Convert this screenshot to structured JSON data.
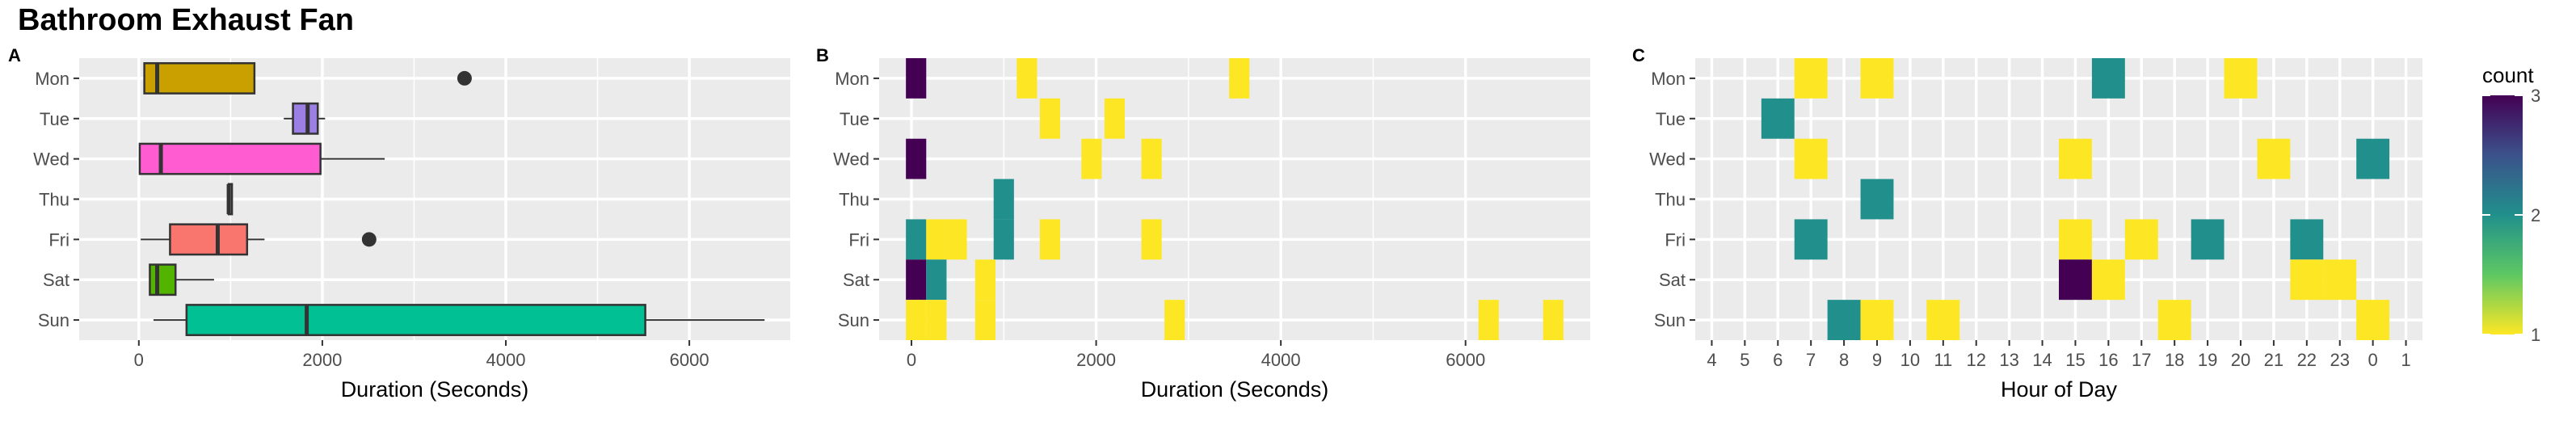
{
  "title": "Bathroom Exhaust Fan",
  "colors": {
    "panel_bg": "#EBEBEB",
    "grid": "#FFFFFF",
    "tile_1": "#FDE725",
    "tile_2": "#21908C",
    "tile_3": "#440154",
    "outlier": "#333333"
  },
  "chart_data": [
    {
      "panel": "A",
      "type": "box",
      "xlabel": "Duration (Seconds)",
      "ylabel": "",
      "xlim": [
        -650,
        7100
      ],
      "xticks": [
        0,
        2000,
        4000,
        6000
      ],
      "categories": [
        "Mon",
        "Tue",
        "Wed",
        "Thu",
        "Fri",
        "Sat",
        "Sun"
      ],
      "boxes": [
        {
          "day": "Mon",
          "fill": "#C9A000",
          "whisker_low": 60,
          "q1": 60,
          "median": 200,
          "q3": 1260,
          "whisker_high": 1260,
          "outliers": [
            3550
          ]
        },
        {
          "day": "Tue",
          "fill": "#9B7FE3",
          "whisker_low": 1580,
          "q1": 1680,
          "median": 1840,
          "q3": 1950,
          "whisker_high": 2030,
          "outliers": []
        },
        {
          "day": "Wed",
          "fill": "#FF5CD1",
          "whisker_low": 10,
          "q1": 10,
          "median": 240,
          "q3": 1980,
          "whisker_high": 2680,
          "outliers": []
        },
        {
          "day": "Thu",
          "fill": "#B0B0B0",
          "whisker_low": 980,
          "q1": 980,
          "median": 980,
          "q3": 980,
          "whisker_high": 1000,
          "outliers": []
        },
        {
          "day": "Fri",
          "fill": "#F8766D",
          "whisker_low": 20,
          "q1": 340,
          "median": 860,
          "q3": 1180,
          "whisker_high": 1370,
          "outliers": [
            2510
          ]
        },
        {
          "day": "Sat",
          "fill": "#53B400",
          "whisker_low": 120,
          "q1": 120,
          "median": 200,
          "q3": 400,
          "whisker_high": 820,
          "outliers": []
        },
        {
          "day": "Sun",
          "fill": "#00C094",
          "whisker_low": 160,
          "q1": 520,
          "median": 1830,
          "q3": 5520,
          "whisker_high": 6820,
          "outliers": []
        }
      ]
    },
    {
      "panel": "B",
      "type": "heatmap",
      "xlabel": "Duration (Seconds)",
      "ylabel": "",
      "xlim": [
        -350,
        7350
      ],
      "xticks": [
        0,
        2000,
        4000,
        6000
      ],
      "bin_width": 220,
      "categories": [
        "Mon",
        "Tue",
        "Wed",
        "Thu",
        "Fri",
        "Sat",
        "Sun"
      ],
      "tiles": [
        {
          "day": "Mon",
          "x": 50,
          "count": 3
        },
        {
          "day": "Mon",
          "x": 1250,
          "count": 1
        },
        {
          "day": "Mon",
          "x": 3550,
          "count": 1
        },
        {
          "day": "Tue",
          "x": 1500,
          "count": 1
        },
        {
          "day": "Tue",
          "x": 2200,
          "count": 1
        },
        {
          "day": "Wed",
          "x": 50,
          "count": 3
        },
        {
          "day": "Wed",
          "x": 1950,
          "count": 1
        },
        {
          "day": "Wed",
          "x": 2600,
          "count": 1
        },
        {
          "day": "Thu",
          "x": 1000,
          "count": 2
        },
        {
          "day": "Fri",
          "x": 50,
          "count": 2
        },
        {
          "day": "Fri",
          "x": 270,
          "count": 1
        },
        {
          "day": "Fri",
          "x": 490,
          "count": 1
        },
        {
          "day": "Fri",
          "x": 1000,
          "count": 2
        },
        {
          "day": "Fri",
          "x": 1500,
          "count": 1
        },
        {
          "day": "Fri",
          "x": 2600,
          "count": 1
        },
        {
          "day": "Sat",
          "x": 50,
          "count": 3
        },
        {
          "day": "Sat",
          "x": 270,
          "count": 2
        },
        {
          "day": "Sat",
          "x": 800,
          "count": 1
        },
        {
          "day": "Sun",
          "x": 50,
          "count": 1
        },
        {
          "day": "Sun",
          "x": 270,
          "count": 1
        },
        {
          "day": "Sun",
          "x": 800,
          "count": 1
        },
        {
          "day": "Sun",
          "x": 2850,
          "count": 1
        },
        {
          "day": "Sun",
          "x": 6250,
          "count": 1
        },
        {
          "day": "Sun",
          "x": 6950,
          "count": 1
        }
      ]
    },
    {
      "panel": "C",
      "type": "heatmap",
      "xlabel": "Hour of Day",
      "ylabel": "",
      "xticks": [
        "4",
        "5",
        "6",
        "7",
        "8",
        "9",
        "10",
        "11",
        "12",
        "13",
        "14",
        "15",
        "16",
        "17",
        "18",
        "19",
        "20",
        "21",
        "22",
        "23",
        "0",
        "1"
      ],
      "categories": [
        "Mon",
        "Tue",
        "Wed",
        "Thu",
        "Fri",
        "Sat",
        "Sun"
      ],
      "tiles": [
        {
          "day": "Mon",
          "hour": "7",
          "count": 1
        },
        {
          "day": "Mon",
          "hour": "9",
          "count": 1
        },
        {
          "day": "Mon",
          "hour": "16",
          "count": 2
        },
        {
          "day": "Mon",
          "hour": "20",
          "count": 1
        },
        {
          "day": "Tue",
          "hour": "6",
          "count": 2
        },
        {
          "day": "Wed",
          "hour": "7",
          "count": 1
        },
        {
          "day": "Wed",
          "hour": "15",
          "count": 1
        },
        {
          "day": "Wed",
          "hour": "21",
          "count": 1
        },
        {
          "day": "Wed",
          "hour": "0",
          "count": 2
        },
        {
          "day": "Thu",
          "hour": "9",
          "count": 2
        },
        {
          "day": "Fri",
          "hour": "7",
          "count": 2
        },
        {
          "day": "Fri",
          "hour": "15",
          "count": 1
        },
        {
          "day": "Fri",
          "hour": "17",
          "count": 1
        },
        {
          "day": "Fri",
          "hour": "19",
          "count": 2
        },
        {
          "day": "Fri",
          "hour": "22",
          "count": 2
        },
        {
          "day": "Sat",
          "hour": "15",
          "count": 3
        },
        {
          "day": "Sat",
          "hour": "16",
          "count": 1
        },
        {
          "day": "Sat",
          "hour": "22",
          "count": 1
        },
        {
          "day": "Sat",
          "hour": "23",
          "count": 1
        },
        {
          "day": "Sun",
          "hour": "8",
          "count": 2
        },
        {
          "day": "Sun",
          "hour": "9",
          "count": 1
        },
        {
          "day": "Sun",
          "hour": "11",
          "count": 1
        },
        {
          "day": "Sun",
          "hour": "18",
          "count": 1
        },
        {
          "day": "Sun",
          "hour": "0",
          "count": 1
        }
      ]
    }
  ],
  "legend": {
    "title": "count",
    "ticks": [
      "3",
      "2",
      "1"
    ],
    "range": [
      1,
      3
    ],
    "stops": [
      "#FDE725",
      "#5DC863",
      "#21908C",
      "#3B528B",
      "#440154"
    ]
  }
}
